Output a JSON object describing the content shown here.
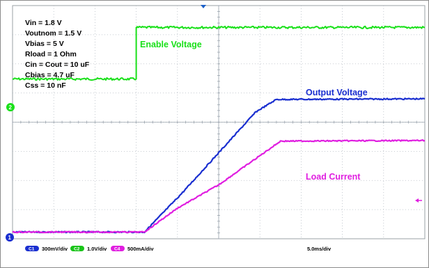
{
  "chart_data": {
    "type": "line",
    "title": "",
    "xlabel": "",
    "ylabel": "",
    "annotations": [
      "Vin = 1.8 V",
      "Voutnom = 1.5 V",
      "Vbias = 5 V",
      "Rload = 1 Ohm",
      "Cin = Cout = 10 uF",
      "Cbias = 4.7 uF",
      "Css = 10 nF"
    ],
    "grid": true,
    "grid_divisions": {
      "x": 10,
      "y": 8
    },
    "xlim_divisions": [
      0,
      10
    ],
    "ylim_divisions": [
      0,
      8
    ],
    "series": [
      {
        "name": "Enable Voltage",
        "channel": "C2",
        "color": "#19e019",
        "x": [
          0,
          3.0,
          3.0,
          10.0
        ],
        "y": [
          5.48,
          5.48,
          7.25,
          7.25
        ]
      },
      {
        "name": "Output Voltage",
        "channel": "C1",
        "color": "#1a2fd0",
        "x": [
          0,
          3.2,
          4.1,
          5.0,
          5.9,
          6.4,
          10.0
        ],
        "y": [
          0.23,
          0.23,
          1.55,
          2.95,
          4.35,
          4.78,
          4.8
        ]
      },
      {
        "name": "Load Current",
        "channel": "C4",
        "color": "#e01ee0",
        "x": [
          0,
          3.2,
          4.0,
          5.0,
          5.9,
          6.5,
          10.0
        ],
        "y": [
          0.23,
          0.23,
          1.05,
          1.85,
          2.75,
          3.35,
          3.37
        ]
      }
    ],
    "scale_labels": [
      {
        "channel": "C1",
        "value": "300mV/div",
        "color": "#1a2fd0"
      },
      {
        "channel": "C2",
        "value": "1.0V/div",
        "color": "#19c419"
      },
      {
        "channel": "C4",
        "value": "500mA/div",
        "color": "#e01ee0"
      }
    ],
    "timebase": "5.0ms/div"
  },
  "markers": {
    "ch2": "2",
    "ch1": "1"
  }
}
